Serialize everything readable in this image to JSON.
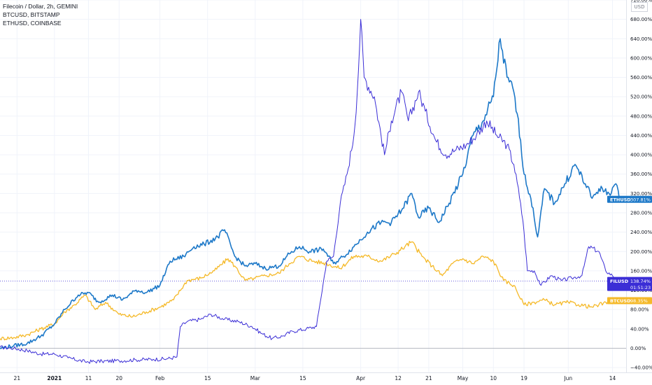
{
  "legend": {
    "title": "Filecoin / Dollar, 2h, GEMINI",
    "series2": "BTCUSD, BITSTAMP",
    "series3": "ETHUSD, COINBASE"
  },
  "currency_button": "USD",
  "chart_data": {
    "type": "line",
    "yscale": "percent",
    "ylim": [
      -50,
      720
    ],
    "y_ticks": [
      -40,
      0,
      40,
      80,
      120,
      160,
      200,
      240,
      280,
      320,
      360,
      400,
      440,
      480,
      520,
      560,
      600,
      640,
      680,
      720
    ],
    "y_tick_labels": [
      "−40.00%",
      "0.00%",
      "40.00%",
      "80.00%",
      "120.00%",
      "160.00%",
      "200.00%",
      "240.00%",
      "280.00%",
      "320.00%",
      "360.00%",
      "400.00%",
      "440.00%",
      "480.00%",
      "520.00%",
      "560.00%",
      "600.00%",
      "640.00%",
      "680.00%",
      "720.00%"
    ],
    "x_range": [
      "2020-12-16",
      "2021-06-18"
    ],
    "x_ticks": [
      {
        "date": "2020-12-21",
        "label": "21",
        "bold": false
      },
      {
        "date": "2021-01-01",
        "label": "2021",
        "bold": true
      },
      {
        "date": "2021-01-11",
        "label": "11",
        "bold": false
      },
      {
        "date": "2021-01-20",
        "label": "20",
        "bold": false
      },
      {
        "date": "2021-02-01",
        "label": "Feb",
        "bold": false
      },
      {
        "date": "2021-02-15",
        "label": "15",
        "bold": false
      },
      {
        "date": "2021-03-01",
        "label": "Mar",
        "bold": false
      },
      {
        "date": "2021-03-15",
        "label": "15",
        "bold": false
      },
      {
        "date": "2021-04-01",
        "label": "Apr",
        "bold": false
      },
      {
        "date": "2021-04-12",
        "label": "12",
        "bold": false
      },
      {
        "date": "2021-04-21",
        "label": "21",
        "bold": false
      },
      {
        "date": "2021-05-01",
        "label": "May",
        "bold": false
      },
      {
        "date": "2021-05-10",
        "label": "10",
        "bold": false
      },
      {
        "date": "2021-05-19",
        "label": "19",
        "bold": false
      },
      {
        "date": "2021-06-01",
        "label": "Jun",
        "bold": false
      },
      {
        "date": "2021-06-14",
        "label": "14",
        "bold": false
      }
    ],
    "series": [
      {
        "name": "FILUSD",
        "color": "#3b2ed6",
        "last_value": 138.74,
        "last_label": "138.74%",
        "countdown": "01:51:23",
        "points": [
          [
            "2020-12-16",
            2
          ],
          [
            "2020-12-20",
            0
          ],
          [
            "2020-12-24",
            -5
          ],
          [
            "2020-12-28",
            -12
          ],
          [
            "2021-01-01",
            -12
          ],
          [
            "2021-01-05",
            -20
          ],
          [
            "2021-01-10",
            -28
          ],
          [
            "2021-01-15",
            -27
          ],
          [
            "2021-01-20",
            -26
          ],
          [
            "2021-01-25",
            -24
          ],
          [
            "2021-01-30",
            -23
          ],
          [
            "2021-02-03",
            -22
          ],
          [
            "2021-02-06",
            -18
          ],
          [
            "2021-02-07",
            45
          ],
          [
            "2021-02-09",
            55
          ],
          [
            "2021-02-13",
            60
          ],
          [
            "2021-02-16",
            70
          ],
          [
            "2021-02-20",
            60
          ],
          [
            "2021-02-24",
            55
          ],
          [
            "2021-02-28",
            45
          ],
          [
            "2021-03-03",
            30
          ],
          [
            "2021-03-06",
            20
          ],
          [
            "2021-03-09",
            25
          ],
          [
            "2021-03-12",
            35
          ],
          [
            "2021-03-16",
            40
          ],
          [
            "2021-03-19",
            45
          ],
          [
            "2021-03-20",
            90
          ],
          [
            "2021-03-22",
            180
          ],
          [
            "2021-03-24",
            190
          ],
          [
            "2021-03-26",
            300
          ],
          [
            "2021-03-28",
            360
          ],
          [
            "2021-03-30",
            440
          ],
          [
            "2021-03-31",
            530
          ],
          [
            "2021-04-01",
            680
          ],
          [
            "2021-04-02",
            560
          ],
          [
            "2021-04-05",
            520
          ],
          [
            "2021-04-08",
            400
          ],
          [
            "2021-04-10",
            470
          ],
          [
            "2021-04-13",
            530
          ],
          [
            "2021-04-15",
            470
          ],
          [
            "2021-04-18",
            530
          ],
          [
            "2021-04-20",
            490
          ],
          [
            "2021-04-23",
            430
          ],
          [
            "2021-04-26",
            400
          ],
          [
            "2021-04-29",
            410
          ],
          [
            "2021-05-02",
            420
          ],
          [
            "2021-05-05",
            440
          ],
          [
            "2021-05-08",
            470
          ],
          [
            "2021-05-11",
            440
          ],
          [
            "2021-05-14",
            420
          ],
          [
            "2021-05-16",
            380
          ],
          [
            "2021-05-18",
            300
          ],
          [
            "2021-05-19",
            240
          ],
          [
            "2021-05-20",
            160
          ],
          [
            "2021-05-22",
            160
          ],
          [
            "2021-05-24",
            130
          ],
          [
            "2021-05-27",
            150
          ],
          [
            "2021-05-30",
            140
          ],
          [
            "2021-06-02",
            145
          ],
          [
            "2021-06-05",
            150
          ],
          [
            "2021-06-07",
            210
          ],
          [
            "2021-06-10",
            200
          ],
          [
            "2021-06-12",
            160
          ],
          [
            "2021-06-14",
            150
          ],
          [
            "2021-06-16",
            139
          ]
        ]
      },
      {
        "name": "BTCUSD",
        "color": "#f5b928",
        "last_value": 98.35,
        "last_label": "98.35%",
        "points": [
          [
            "2020-12-16",
            20
          ],
          [
            "2020-12-20",
            22
          ],
          [
            "2020-12-24",
            28
          ],
          [
            "2020-12-28",
            40
          ],
          [
            "2021-01-01",
            50
          ],
          [
            "2021-01-04",
            75
          ],
          [
            "2021-01-07",
            90
          ],
          [
            "2021-01-10",
            110
          ],
          [
            "2021-01-13",
            80
          ],
          [
            "2021-01-16",
            95
          ],
          [
            "2021-01-20",
            70
          ],
          [
            "2021-01-24",
            65
          ],
          [
            "2021-01-28",
            75
          ],
          [
            "2021-02-01",
            85
          ],
          [
            "2021-02-05",
            100
          ],
          [
            "2021-02-09",
            140
          ],
          [
            "2021-02-13",
            145
          ],
          [
            "2021-02-17",
            160
          ],
          [
            "2021-02-21",
            185
          ],
          [
            "2021-02-23",
            170
          ],
          [
            "2021-02-26",
            140
          ],
          [
            "2021-03-01",
            145
          ],
          [
            "2021-03-04",
            150
          ],
          [
            "2021-03-08",
            155
          ],
          [
            "2021-03-11",
            175
          ],
          [
            "2021-03-14",
            190
          ],
          [
            "2021-03-18",
            180
          ],
          [
            "2021-03-22",
            175
          ],
          [
            "2021-03-26",
            165
          ],
          [
            "2021-03-30",
            190
          ],
          [
            "2021-04-03",
            190
          ],
          [
            "2021-04-07",
            180
          ],
          [
            "2021-04-11",
            195
          ],
          [
            "2021-04-14",
            210
          ],
          [
            "2021-04-16",
            220
          ],
          [
            "2021-04-19",
            190
          ],
          [
            "2021-04-22",
            170
          ],
          [
            "2021-04-25",
            150
          ],
          [
            "2021-04-28",
            175
          ],
          [
            "2021-05-01",
            185
          ],
          [
            "2021-05-04",
            175
          ],
          [
            "2021-05-07",
            190
          ],
          [
            "2021-05-10",
            180
          ],
          [
            "2021-05-13",
            140
          ],
          [
            "2021-05-16",
            130
          ],
          [
            "2021-05-19",
            90
          ],
          [
            "2021-05-22",
            95
          ],
          [
            "2021-05-25",
            100
          ],
          [
            "2021-05-28",
            90
          ],
          [
            "2021-06-01",
            95
          ],
          [
            "2021-06-04",
            90
          ],
          [
            "2021-06-08",
            85
          ],
          [
            "2021-06-10",
            90
          ],
          [
            "2021-06-13",
            95
          ],
          [
            "2021-06-16",
            98
          ]
        ]
      },
      {
        "name": "ETHUSD",
        "color": "#1c78c8",
        "last_value": 307.81,
        "last_label": "307.81%",
        "points": [
          [
            "2020-12-16",
            0
          ],
          [
            "2020-12-20",
            5
          ],
          [
            "2020-12-24",
            10
          ],
          [
            "2020-12-28",
            25
          ],
          [
            "2021-01-01",
            50
          ],
          [
            "2021-01-04",
            80
          ],
          [
            "2021-01-08",
            110
          ],
          [
            "2021-01-11",
            115
          ],
          [
            "2021-01-14",
            95
          ],
          [
            "2021-01-18",
            110
          ],
          [
            "2021-01-21",
            100
          ],
          [
            "2021-01-25",
            120
          ],
          [
            "2021-01-28",
            115
          ],
          [
            "2021-02-01",
            130
          ],
          [
            "2021-02-04",
            180
          ],
          [
            "2021-02-08",
            190
          ],
          [
            "2021-02-11",
            210
          ],
          [
            "2021-02-14",
            215
          ],
          [
            "2021-02-18",
            230
          ],
          [
            "2021-02-20",
            245
          ],
          [
            "2021-02-23",
            190
          ],
          [
            "2021-02-26",
            170
          ],
          [
            "2021-03-01",
            175
          ],
          [
            "2021-03-04",
            165
          ],
          [
            "2021-03-08",
            170
          ],
          [
            "2021-03-11",
            195
          ],
          [
            "2021-03-14",
            210
          ],
          [
            "2021-03-17",
            200
          ],
          [
            "2021-03-21",
            205
          ],
          [
            "2021-03-24",
            175
          ],
          [
            "2021-03-27",
            190
          ],
          [
            "2021-03-30",
            210
          ],
          [
            "2021-04-03",
            240
          ],
          [
            "2021-04-07",
            260
          ],
          [
            "2021-04-10",
            260
          ],
          [
            "2021-04-13",
            285
          ],
          [
            "2021-04-16",
            320
          ],
          [
            "2021-04-18",
            270
          ],
          [
            "2021-04-21",
            290
          ],
          [
            "2021-04-24",
            260
          ],
          [
            "2021-04-27",
            300
          ],
          [
            "2021-05-01",
            360
          ],
          [
            "2021-05-04",
            440
          ],
          [
            "2021-05-07",
            470
          ],
          [
            "2021-05-10",
            520
          ],
          [
            "2021-05-12",
            640
          ],
          [
            "2021-05-14",
            560
          ],
          [
            "2021-05-16",
            530
          ],
          [
            "2021-05-18",
            430
          ],
          [
            "2021-05-19",
            360
          ],
          [
            "2021-05-21",
            310
          ],
          [
            "2021-05-23",
            230
          ],
          [
            "2021-05-25",
            330
          ],
          [
            "2021-05-28",
            300
          ],
          [
            "2021-05-31",
            340
          ],
          [
            "2021-06-03",
            380
          ],
          [
            "2021-06-06",
            340
          ],
          [
            "2021-06-08",
            310
          ],
          [
            "2021-06-10",
            330
          ],
          [
            "2021-06-13",
            320
          ],
          [
            "2021-06-15",
            340
          ],
          [
            "2021-06-16",
            308
          ]
        ]
      }
    ]
  }
}
